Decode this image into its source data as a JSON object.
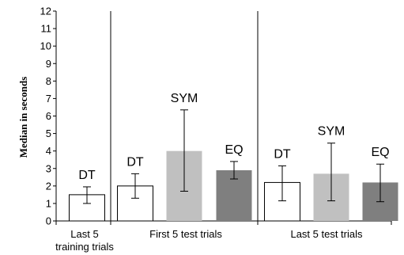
{
  "chart_data": {
    "type": "bar",
    "ylabel": "Median in seconds",
    "xlabel": "",
    "ylim": [
      0,
      12
    ],
    "yticks": [
      "0",
      "1",
      "2",
      "3",
      "4",
      "5",
      "6",
      "7",
      "8",
      "9",
      "10",
      "11",
      "12"
    ],
    "groups": [
      {
        "label_line1": "Last 5",
        "label_line2": "training trials",
        "bars": [
          {
            "label": "DT",
            "value": 1.5,
            "err_low": 1.0,
            "err_high": 1.95
          }
        ]
      },
      {
        "label_line1": "First 5 test trials",
        "label_line2": "",
        "bars": [
          {
            "label": "DT",
            "value": 2.0,
            "err_low": 1.3,
            "err_high": 2.7
          },
          {
            "label": "SYM",
            "value": 4.0,
            "err_low": 1.7,
            "err_high": 6.35
          },
          {
            "label": "EQ",
            "value": 2.9,
            "err_low": 2.4,
            "err_high": 3.4
          }
        ]
      },
      {
        "label_line1": "Last 5 test trials",
        "label_line2": "",
        "bars": [
          {
            "label": "DT",
            "value": 2.2,
            "err_low": 1.15,
            "err_high": 3.15
          },
          {
            "label": "SYM",
            "value": 2.7,
            "err_low": 1.15,
            "err_high": 4.45
          },
          {
            "label": "EQ",
            "value": 2.2,
            "err_low": 1.1,
            "err_high": 3.25
          }
        ]
      }
    ],
    "colors": {
      "DT": "#ffffff",
      "SYM": "#c0c0c0",
      "EQ": "#7f7f7f",
      "outline": "#000000"
    }
  }
}
